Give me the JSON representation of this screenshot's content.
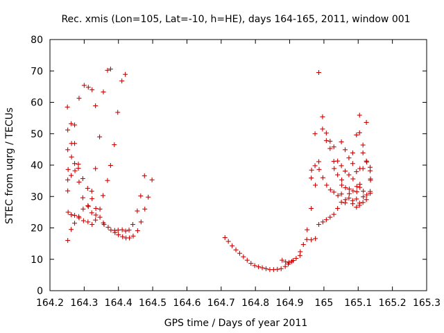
{
  "chart_data": {
    "type": "scatter",
    "title": "Rec. xmis (Lon=105, Lat=-10, h=HE), days 164-165, 2011, window 001",
    "xlabel": "GPS time / Days of year 2011",
    "ylabel": "STEC from uqrg / TECUs",
    "xlim": [
      164.2,
      165.3
    ],
    "ylim": [
      0,
      80
    ],
    "x_ticks": [
      "164.2",
      "164.3",
      "164.4",
      "164.5",
      "164.6",
      "164.7",
      "164.8",
      "164.9",
      "165",
      "165.1",
      "165.2",
      "165.3"
    ],
    "y_ticks": [
      "0",
      "10",
      "20",
      "30",
      "40",
      "50",
      "60",
      "70",
      "80"
    ],
    "grid": false,
    "legend": "none",
    "marker": "plus",
    "color": "#cc0000",
    "series": [
      {
        "points": [
          [
            164.251,
            58.5
          ],
          [
            164.252,
            51.2
          ],
          [
            164.252,
            44.9
          ],
          [
            164.253,
            38.6
          ],
          [
            164.252,
            35.3
          ],
          [
            164.252,
            31.8
          ],
          [
            164.253,
            25.0
          ],
          [
            164.252,
            16.0
          ],
          [
            164.262,
            53.2
          ],
          [
            164.263,
            46.9
          ],
          [
            164.263,
            42.6
          ],
          [
            164.262,
            36.7
          ],
          [
            164.262,
            24.2
          ],
          [
            164.262,
            19.5
          ],
          [
            164.272,
            52.8
          ],
          [
            164.272,
            46.9
          ],
          [
            164.272,
            40.5
          ],
          [
            164.273,
            38.2
          ],
          [
            164.272,
            24.0
          ],
          [
            164.272,
            21.5
          ],
          [
            164.285,
            61.3
          ],
          [
            164.283,
            40.3
          ],
          [
            164.283,
            39.0
          ],
          [
            164.285,
            34.6
          ],
          [
            164.284,
            23.6
          ],
          [
            164.285,
            23.2
          ],
          [
            164.296,
            35.7
          ],
          [
            164.296,
            29.6
          ],
          [
            164.297,
            26.0
          ],
          [
            164.298,
            22.3
          ],
          [
            164.3,
            65.4
          ],
          [
            164.312,
            64.8
          ],
          [
            164.31,
            32.6
          ],
          [
            164.311,
            27.1
          ],
          [
            164.312,
            26.8
          ],
          [
            164.311,
            21.9
          ],
          [
            164.323,
            64.0
          ],
          [
            164.322,
            31.7
          ],
          [
            164.323,
            29.3
          ],
          [
            164.322,
            24.8
          ],
          [
            164.323,
            21.1
          ],
          [
            164.333,
            58.9
          ],
          [
            164.333,
            38.9
          ],
          [
            164.334,
            26.2
          ],
          [
            164.334,
            24.1
          ],
          [
            164.333,
            22.5
          ],
          [
            164.345,
            49.0
          ],
          [
            164.346,
            26.0
          ],
          [
            164.346,
            23.4
          ],
          [
            164.356,
            63.3
          ],
          [
            164.355,
            30.3
          ],
          [
            164.356,
            21.6
          ],
          [
            164.358,
            21.1
          ],
          [
            164.368,
            70.2
          ],
          [
            164.368,
            35.1
          ],
          [
            164.37,
            20.2
          ],
          [
            164.377,
            70.6
          ],
          [
            164.377,
            39.9
          ],
          [
            164.378,
            19.3
          ],
          [
            164.388,
            46.5
          ],
          [
            164.389,
            19.2
          ],
          [
            164.39,
            18.5
          ],
          [
            164.398,
            56.8
          ],
          [
            164.399,
            19.3
          ],
          [
            164.4,
            17.8
          ],
          [
            164.41,
            66.8
          ],
          [
            164.411,
            19.4
          ],
          [
            164.412,
            17.2
          ],
          [
            164.42,
            68.9
          ],
          [
            164.421,
            19.0
          ],
          [
            164.422,
            16.8
          ],
          [
            164.431,
            19.3
          ],
          [
            164.432,
            16.8
          ],
          [
            164.442,
            21.1
          ],
          [
            164.443,
            17.4
          ],
          [
            164.455,
            25.4
          ],
          [
            164.456,
            19.1
          ],
          [
            164.465,
            30.2
          ],
          [
            164.466,
            21.9
          ],
          [
            164.476,
            36.6
          ],
          [
            164.477,
            26.0
          ],
          [
            164.487,
            29.8
          ],
          [
            164.498,
            35.3
          ],
          [
            164.711,
            16.9
          ],
          [
            164.721,
            15.7
          ],
          [
            164.732,
            14.3
          ],
          [
            164.743,
            13.0
          ],
          [
            164.754,
            11.9
          ],
          [
            164.765,
            10.8
          ],
          [
            164.776,
            9.7
          ],
          [
            164.787,
            8.7
          ],
          [
            164.798,
            8.0
          ],
          [
            164.809,
            7.6
          ],
          [
            164.82,
            7.3
          ],
          [
            164.831,
            7.0
          ],
          [
            164.842,
            6.7
          ],
          [
            164.853,
            6.7
          ],
          [
            164.864,
            6.8
          ],
          [
            164.875,
            7.0
          ],
          [
            164.878,
            9.7
          ],
          [
            164.887,
            7.7
          ],
          [
            164.888,
            9.2
          ],
          [
            164.896,
            8.5
          ],
          [
            164.898,
            9.0
          ],
          [
            164.906,
            9.3
          ],
          [
            164.91,
            9.6
          ],
          [
            164.919,
            10.3
          ],
          [
            164.93,
            11.2
          ],
          [
            164.931,
            12.4
          ],
          [
            164.94,
            14.7
          ],
          [
            164.95,
            16.3
          ],
          [
            164.951,
            19.4
          ],
          [
            164.963,
            26.2
          ],
          [
            164.963,
            35.9
          ],
          [
            164.964,
            38.4
          ],
          [
            164.963,
            16.2
          ],
          [
            164.974,
            50.0
          ],
          [
            164.974,
            39.8
          ],
          [
            164.975,
            33.6
          ],
          [
            164.975,
            16.6
          ],
          [
            164.985,
            69.5
          ],
          [
            164.985,
            41.1
          ],
          [
            164.986,
            38.6
          ],
          [
            164.985,
            21.1
          ],
          [
            164.996,
            55.4
          ],
          [
            164.996,
            51.5
          ],
          [
            164.997,
            36.0
          ],
          [
            164.997,
            21.9
          ],
          [
            165.007,
            50.2
          ],
          [
            165.007,
            47.8
          ],
          [
            165.008,
            33.6
          ],
          [
            165.007,
            22.6
          ],
          [
            165.018,
            47.6
          ],
          [
            165.018,
            45.3
          ],
          [
            165.019,
            32.1
          ],
          [
            165.018,
            23.4
          ],
          [
            165.029,
            45.8
          ],
          [
            165.029,
            41.2
          ],
          [
            165.03,
            38.9
          ],
          [
            165.029,
            31.4
          ],
          [
            165.029,
            24.3
          ],
          [
            165.04,
            41.3
          ],
          [
            165.04,
            36.9
          ],
          [
            165.041,
            30.3
          ],
          [
            165.04,
            26.2
          ],
          [
            165.051,
            47.4
          ],
          [
            165.051,
            39.8
          ],
          [
            165.052,
            35.3
          ],
          [
            165.052,
            33.6
          ],
          [
            165.051,
            30.8
          ],
          [
            165.051,
            28.2
          ],
          [
            165.062,
            44.9
          ],
          [
            165.062,
            38.1
          ],
          [
            165.063,
            32.8
          ],
          [
            165.063,
            29.0
          ],
          [
            165.062,
            28.0
          ],
          [
            165.073,
            42.3
          ],
          [
            165.073,
            36.9
          ],
          [
            165.074,
            32.4
          ],
          [
            165.074,
            30.9
          ],
          [
            165.073,
            29.5
          ],
          [
            165.084,
            43.9
          ],
          [
            165.084,
            40.5
          ],
          [
            165.085,
            35.6
          ],
          [
            165.085,
            31.8
          ],
          [
            165.084,
            28.7
          ],
          [
            165.084,
            27.7
          ],
          [
            165.095,
            49.6
          ],
          [
            165.095,
            37.9
          ],
          [
            165.096,
            33.2
          ],
          [
            165.096,
            31.5
          ],
          [
            165.095,
            29.2
          ],
          [
            165.095,
            26.6
          ],
          [
            165.104,
            55.9
          ],
          [
            165.104,
            50.3
          ],
          [
            165.105,
            38.9
          ],
          [
            165.105,
            33.9
          ],
          [
            165.105,
            32.9
          ],
          [
            165.104,
            27.9
          ],
          [
            165.104,
            27.2
          ],
          [
            165.114,
            46.4
          ],
          [
            165.114,
            43.9
          ],
          [
            165.114,
            38.9
          ],
          [
            165.115,
            31.7
          ],
          [
            165.115,
            29.9
          ],
          [
            165.114,
            28.1
          ],
          [
            165.124,
            53.6
          ],
          [
            165.124,
            41.3
          ],
          [
            165.125,
            41.0
          ],
          [
            165.125,
            30.5
          ],
          [
            165.124,
            29.0
          ],
          [
            165.135,
            39.3
          ],
          [
            165.135,
            38.2
          ],
          [
            165.136,
            35.6
          ],
          [
            165.136,
            35.2
          ],
          [
            165.135,
            31.6
          ],
          [
            165.135,
            31.0
          ]
        ]
      }
    ]
  }
}
